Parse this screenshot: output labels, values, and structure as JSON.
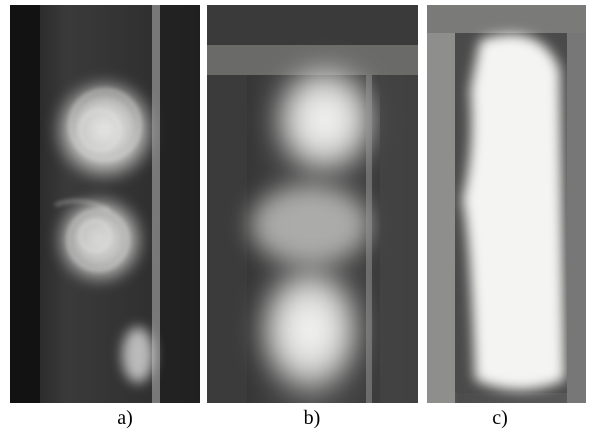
{
  "panels": [
    {
      "label": "a)"
    },
    {
      "label": "b)"
    },
    {
      "label": "c)"
    }
  ]
}
